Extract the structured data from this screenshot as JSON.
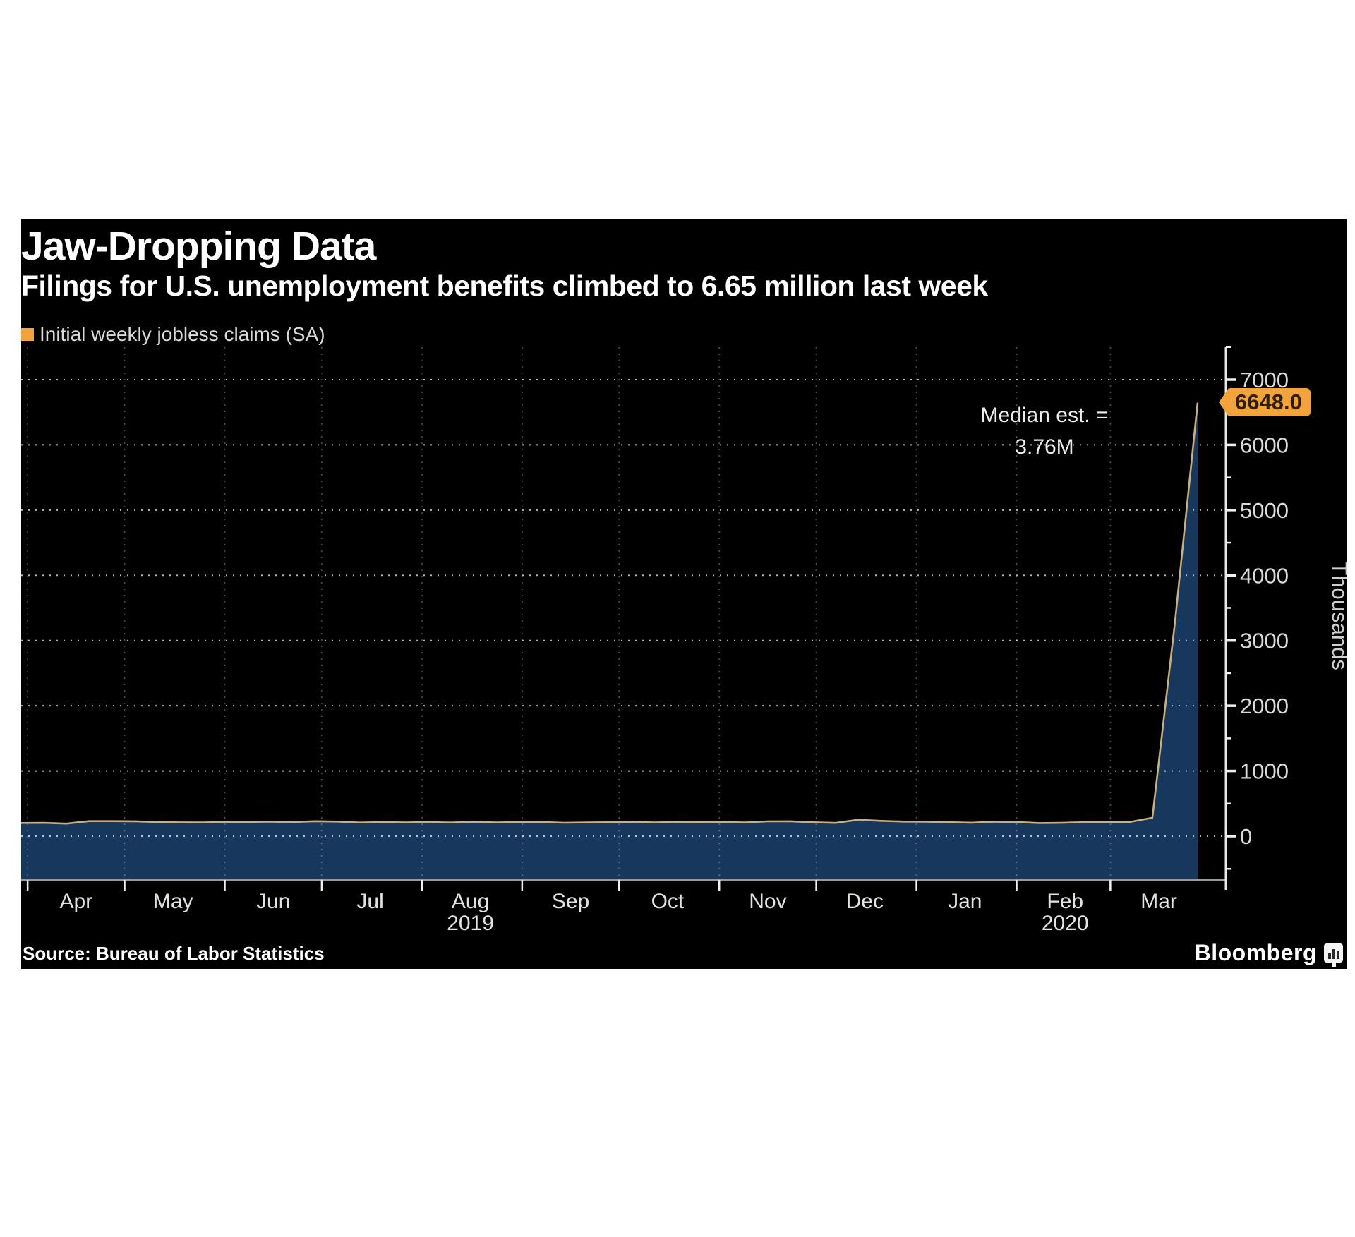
{
  "figure": {
    "title": "Jaw-Dropping Data",
    "subtitle": "Filings for U.S. unemployment benefits climbed to 6.65 million last week",
    "legend": {
      "swatch_color": "#F2A33C",
      "label": "Initial weekly jobless claims (SA)"
    },
    "source": "Source: Bureau of Labor Statistics",
    "brand": "Bloomberg",
    "colors": {
      "panel_bg": "#000000",
      "area_fill": "#17375C",
      "line": "#C9AF7F",
      "accent_orange": "#F2A33C",
      "grid": "#ffffff",
      "axis": "#e8e8e8",
      "baseline": "#999999",
      "tick_label": "#d9d9d9"
    }
  },
  "chart_data": {
    "type": "area",
    "title": "Jaw-Dropping Data",
    "subtitle": "Filings for U.S. unemployment benefits climbed to 6.65 million last week",
    "legend_entries": [
      "Initial weekly jobless claims (SA)"
    ],
    "ylabel": "Thousands",
    "xlabel": "",
    "grid": "dotted",
    "y_ticks": [
      0,
      1000,
      2000,
      3000,
      4000,
      5000,
      6000,
      7000
    ],
    "y_minor_step": 500,
    "ylim_plot": [
      -670,
      7500
    ],
    "x_month_labels": [
      "Apr",
      "May",
      "Jun",
      "Jul",
      "Aug",
      "Sep",
      "Oct",
      "Nov",
      "Dec",
      "Jan",
      "Feb",
      "Mar"
    ],
    "x_year_labels": [
      {
        "label": "2019",
        "under_month_index": 4
      },
      {
        "label": "2020",
        "under_month_index": 10
      }
    ],
    "annotations": {
      "median_line1": "Median est. =",
      "median_line2": "3.76M",
      "last_value_label": "6648.0"
    },
    "series": [
      {
        "name": "Initial weekly jobless claims (SA)",
        "unit": "thousands",
        "start_date": "2019-03-30",
        "end_date": "2020-03-28",
        "frequency_days": 7,
        "values": [
          202,
          204,
          193,
          230,
          230,
          228,
          218,
          212,
          211,
          218,
          219,
          222,
          217,
          229,
          224,
          209,
          216,
          211,
          217,
          209,
          221,
          211,
          216,
          218,
          206,
          210,
          213,
          220,
          210,
          218,
          213,
          218,
          211,
          227,
          228,
          213,
          203,
          252,
          235,
          224,
          223,
          214,
          207,
          223,
          217,
          201,
          204,
          215,
          219,
          217,
          282,
          3283,
          6648
        ]
      }
    ]
  }
}
